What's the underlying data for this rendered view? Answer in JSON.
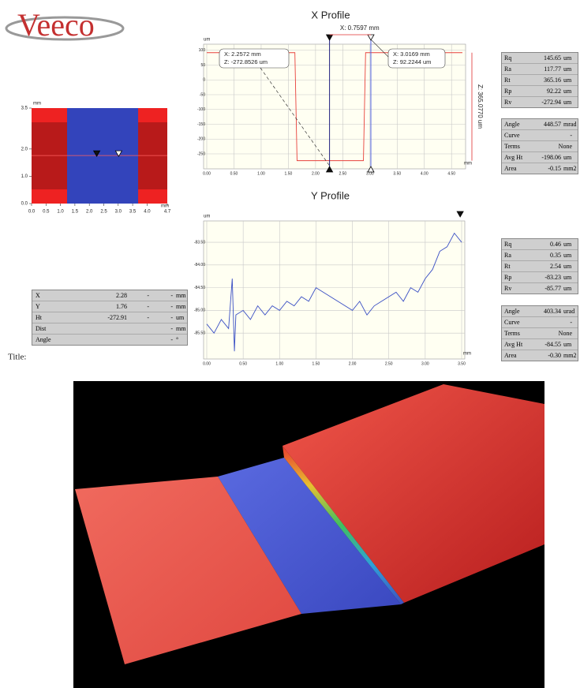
{
  "logo": "Veeco",
  "chart_data": [
    {
      "type": "map",
      "x_unit": "mm",
      "y_unit": "mm",
      "xlim": [
        0,
        4.7
      ],
      "ylim": [
        0,
        3.5
      ],
      "xticks": [
        {
          "value": 0,
          "label": "0.0"
        },
        0.5,
        {
          "value": 1,
          "label": "1.0"
        },
        1.5,
        {
          "value": 2,
          "label": "2.0"
        },
        2.5,
        {
          "value": 3,
          "label": "3.0"
        },
        3.5,
        {
          "value": 4,
          "label": "4.0"
        },
        4.7
      ],
      "yticks": [
        {
          "value": 0,
          "label": "0.0"
        },
        {
          "value": 1,
          "label": "1.0"
        },
        {
          "value": 2,
          "label": "2.0"
        },
        3.5
      ],
      "band_x": [
        1.23,
        3.69
      ],
      "cursor_x": [
        2.2572,
        3.0169
      ],
      "cursor_y": 1.76
    },
    {
      "type": "line",
      "title": "X Profile",
      "y_unit": "um",
      "x_unit": "mm",
      "xlim": [
        0,
        4.7
      ],
      "ylim": [
        -290,
        110
      ],
      "xticks": [
        {
          "value": 0,
          "label": "0.00"
        },
        {
          "value": 0.5,
          "label": "0.50"
        },
        {
          "value": 1,
          "label": "1.00"
        },
        {
          "value": 1.5,
          "label": "1.50"
        },
        {
          "value": 2,
          "label": "2.00"
        },
        {
          "value": 2.5,
          "label": "2.50"
        },
        {
          "value": 3,
          "label": "3.00"
        },
        {
          "value": 3.5,
          "label": "3.50"
        },
        {
          "value": 4,
          "label": "4.00"
        },
        {
          "value": 4.5,
          "label": "4.50"
        }
      ],
      "yticks": [
        100,
        50,
        0,
        -50,
        -100,
        -150,
        -200,
        -250
      ],
      "grid": true,
      "series": [
        {
          "color": "#e8413c",
          "x": [
            0,
            1.62,
            1.66,
            2.88,
            2.92,
            4.7
          ],
          "values": [
            92,
            92,
            -273,
            -273,
            92,
            92
          ]
        }
      ],
      "cursors": [
        2.2572,
        3.0169
      ],
      "annotations": [
        "X: 0.7597 mm",
        "X: 2.2572 mm",
        "Z: -272.8526 um",
        "X: 3.0169 mm",
        "Z: 92.2244 um",
        "Z: 365.0770 um"
      ]
    },
    {
      "type": "line",
      "title": "Y Profile",
      "y_unit": "um",
      "x_unit": "mm",
      "xlim": [
        0,
        3.5
      ],
      "ylim": [
        -86.0,
        -83.1
      ],
      "xticks": [
        {
          "value": 0,
          "label": "0.00"
        },
        {
          "value": 0.5,
          "label": "0.50"
        },
        {
          "value": 1,
          "label": "1.00"
        },
        {
          "value": 1.5,
          "label": "1.50"
        },
        {
          "value": 2,
          "label": "2.00"
        },
        {
          "value": 2.5,
          "label": "2.50"
        },
        {
          "value": 3,
          "label": "3.00"
        },
        {
          "value": 3.5,
          "label": "3.50"
        }
      ],
      "yticks": [
        {
          "value": -83.5,
          "label": "-83.50"
        },
        {
          "value": -84,
          "label": "-84.00"
        },
        {
          "value": -84.5,
          "label": "-84.50"
        },
        {
          "value": -85,
          "label": "-85.00"
        },
        {
          "value": -85.5,
          "label": "-85.50"
        }
      ],
      "grid": true,
      "series": [
        {
          "color": "#3a4fc4",
          "x": [
            0,
            0.1,
            0.2,
            0.3,
            0.35,
            0.38,
            0.4,
            0.5,
            0.6,
            0.7,
            0.8,
            0.9,
            1.0,
            1.1,
            1.2,
            1.3,
            1.4,
            1.5,
            1.6,
            1.7,
            1.8,
            1.9,
            2.0,
            2.1,
            2.2,
            2.3,
            2.4,
            2.5,
            2.6,
            2.7,
            2.8,
            2.9,
            3.0,
            3.1,
            3.2,
            3.3,
            3.4,
            3.5
          ],
          "values": [
            -85.3,
            -85.5,
            -85.2,
            -85.4,
            -84.3,
            -85.9,
            -85.1,
            -85.0,
            -85.2,
            -84.9,
            -85.1,
            -84.9,
            -85.0,
            -84.8,
            -84.9,
            -84.7,
            -84.8,
            -84.5,
            -84.6,
            -84.7,
            -84.8,
            -84.9,
            -85.0,
            -84.8,
            -85.1,
            -84.9,
            -84.8,
            -84.7,
            -84.6,
            -84.8,
            -84.5,
            -84.6,
            -84.3,
            -84.1,
            -83.7,
            -83.6,
            -83.3,
            -83.5
          ]
        }
      ],
      "cursors": [
        3.48
      ]
    }
  ],
  "stats": [
    {
      "rows": [
        [
          "Rq",
          "145.65",
          "um"
        ],
        [
          "Ra",
          "117.77",
          "um"
        ],
        [
          "Rt",
          "365.16",
          "um"
        ],
        [
          "Rp",
          "92.22",
          "um"
        ],
        [
          "Rv",
          "-272.94",
          "um"
        ]
      ]
    },
    {
      "rows": [
        [
          "Angle",
          "448.57",
          "mrad"
        ],
        [
          "Curve",
          "-"
        ],
        [
          "Terms",
          "None"
        ],
        [
          "Avg Ht",
          "-198.06",
          "um"
        ],
        [
          "Area",
          "-0.15",
          "mm2"
        ]
      ]
    },
    {
      "rows": [
        [
          "Rq",
          "0.46",
          "um"
        ],
        [
          "Ra",
          "0.35",
          "um"
        ],
        [
          "Rt",
          "2.54",
          "um"
        ],
        [
          "Rp",
          "-83.23",
          "um"
        ],
        [
          "Rv",
          "-85.77",
          "um"
        ]
      ]
    },
    {
      "rows": [
        [
          "Angle",
          "403.34",
          "urad"
        ],
        [
          "Curve",
          "-"
        ],
        [
          "Terms",
          "None"
        ],
        [
          "Avg Ht",
          "-84.55",
          "um"
        ],
        [
          "Area",
          "-0.30",
          "mm2"
        ]
      ]
    }
  ],
  "cursor_table": {
    "rows": [
      [
        "X",
        "2.28",
        "-",
        "-",
        "mm"
      ],
      [
        "Y",
        "1.76",
        "-",
        "-",
        "mm"
      ],
      [
        "Ht",
        "-272.91",
        "-",
        "-",
        "um"
      ],
      [
        "Dist",
        "-",
        "mm"
      ],
      [
        "Angle",
        "-",
        "°"
      ]
    ]
  },
  "title_label": "Title:"
}
